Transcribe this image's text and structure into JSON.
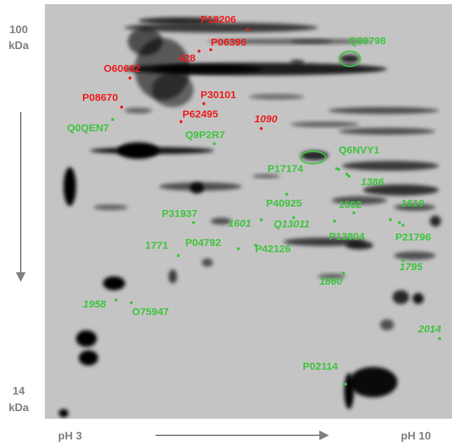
{
  "axis": {
    "top_mass": "100",
    "top_unit": "kDa",
    "bottom_mass": "14",
    "bottom_unit": "kDa",
    "left_ph": "pH 3",
    "right_ph": "pH 10"
  },
  "spots": [
    {
      "label": "P18206",
      "color": "#ee1c1c",
      "italic": false
    },
    {
      "label": "P06396",
      "color": "#ee1c1c",
      "italic": false
    },
    {
      "label": "428",
      "color": "#ee1c1c",
      "italic": false
    },
    {
      "label": "O60662",
      "color": "#ee1c1c",
      "italic": false
    },
    {
      "label": "P30101",
      "color": "#ee1c1c",
      "italic": false
    },
    {
      "label": "P08670",
      "color": "#ee1c1c",
      "italic": false
    },
    {
      "label": "P62495",
      "color": "#ee1c1c",
      "italic": false
    },
    {
      "label": "1090",
      "color": "#ee1c1c",
      "italic": true
    },
    {
      "label": "Q99798",
      "color": "#3ec43e",
      "italic": false
    },
    {
      "label": "Q0QEN7",
      "color": "#3ec43e",
      "italic": false
    },
    {
      "label": "Q9P2R7",
      "color": "#3ec43e",
      "italic": false
    },
    {
      "label": "Q6NVY1",
      "color": "#3ec43e",
      "italic": false
    },
    {
      "label": "P17174",
      "color": "#3ec43e",
      "italic": false
    },
    {
      "label": "1386",
      "color": "#3ec43e",
      "italic": true
    },
    {
      "label": "P40925",
      "color": "#3ec43e",
      "italic": false
    },
    {
      "label": "1592",
      "color": "#3ec43e",
      "italic": false
    },
    {
      "label": "1610",
      "color": "#3ec43e",
      "italic": true
    },
    {
      "label": "P31937",
      "color": "#3ec43e",
      "italic": false
    },
    {
      "label": "1601",
      "color": "#3ec43e",
      "italic": true
    },
    {
      "label": "Q13011",
      "color": "#3ec43e",
      "italic": true
    },
    {
      "label": "P13804",
      "color": "#3ec43e",
      "italic": false
    },
    {
      "label": "P21796",
      "color": "#3ec43e",
      "italic": false
    },
    {
      "label": "1771",
      "color": "#3ec43e",
      "italic": false
    },
    {
      "label": "P04792",
      "color": "#3ec43e",
      "italic": false
    },
    {
      "label": "P42126",
      "color": "#3ec43e",
      "italic": false
    },
    {
      "label": "1795",
      "color": "#3ec43e",
      "italic": true
    },
    {
      "label": "1860",
      "color": "#3ec43e",
      "italic": true
    },
    {
      "label": "1958",
      "color": "#3ec43e",
      "italic": true
    },
    {
      "label": "O75947",
      "color": "#3ec43e",
      "italic": false
    },
    {
      "label": "2014",
      "color": "#3ec43e",
      "italic": true
    },
    {
      "label": "P02114",
      "color": "#3ec43e",
      "italic": false
    }
  ]
}
